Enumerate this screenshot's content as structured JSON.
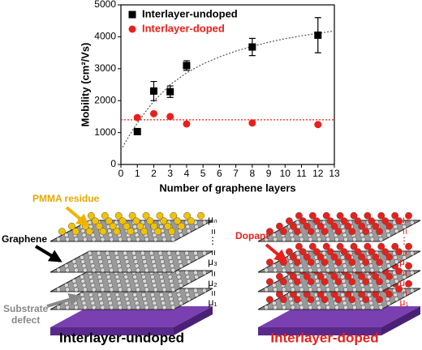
{
  "chart_data": {
    "type": "scatter",
    "xlabel": "Number of graphene layers",
    "ylabel": "Mobility (cm²/Vs)",
    "xlim": [
      0,
      13
    ],
    "xticks": [
      0,
      1,
      2,
      3,
      4,
      5,
      6,
      7,
      8,
      9,
      10,
      11,
      12,
      13
    ],
    "ylim": [
      0,
      5000
    ],
    "yticks": [
      0,
      1000,
      2000,
      3000,
      4000,
      5000
    ],
    "legend": "upper left",
    "series": [
      {
        "name": "Interlayer-undoped",
        "color": "#000000",
        "marker": "square",
        "x": [
          1,
          2,
          3,
          4,
          8,
          12
        ],
        "values": [
          1030,
          2300,
          2280,
          3100,
          3680,
          4050
        ],
        "errors": [
          60,
          300,
          180,
          150,
          270,
          550
        ]
      },
      {
        "name": "Interlayer-doped",
        "color": "#e8201b",
        "marker": "circle",
        "x": [
          1,
          2,
          3,
          4,
          8,
          12
        ],
        "values": [
          1470,
          1590,
          1500,
          1270,
          1300,
          1250
        ]
      }
    ],
    "trend_lines": [
      {
        "color": "#555555",
        "x": [
          0,
          0.5,
          1,
          1.5,
          2,
          3,
          4,
          5,
          6,
          7,
          8,
          9,
          10,
          11,
          12,
          13
        ],
        "values": [
          450,
          900,
          1300,
          1650,
          1980,
          2500,
          2870,
          3150,
          3370,
          3550,
          3700,
          3830,
          3940,
          4030,
          4110,
          4180
        ]
      },
      {
        "color": "#e8201b",
        "x": [
          0,
          13
        ],
        "values": [
          1400,
          1400
        ]
      }
    ]
  },
  "illustration": {
    "left": {
      "title": "Interlayer-undoped",
      "residue": "PMMA residue",
      "graphene": "Graphene",
      "defect": [
        "Substrate",
        "defect"
      ],
      "mobility": [
        "μₙ",
        "=",
        "⋮",
        "=",
        "μ₃",
        "=",
        "μ₂",
        "=",
        "μ₁"
      ]
    },
    "right": {
      "title": "Interlayer-doped",
      "dopant": "Dopant",
      "mobility": [
        "μₙ",
        "=",
        "⋮",
        "=",
        "μ₃",
        "=",
        "μ₂",
        "=",
        "μ₁"
      ]
    }
  }
}
